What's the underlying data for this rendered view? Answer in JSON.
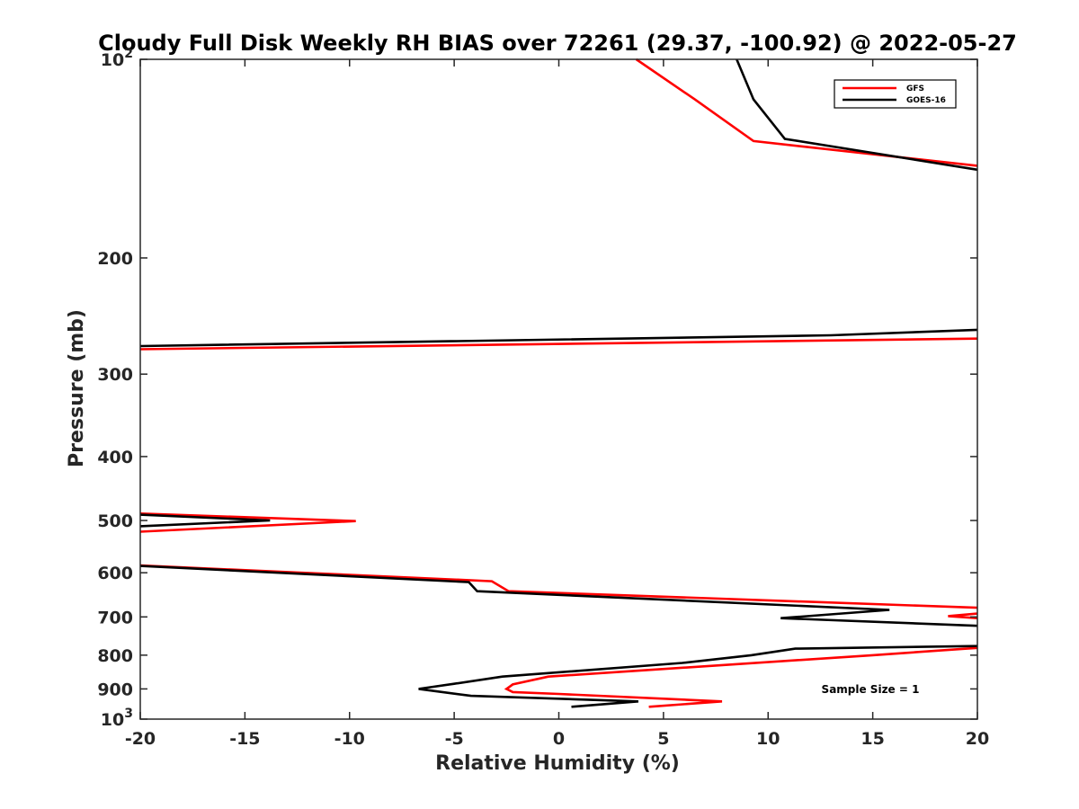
{
  "chart_data": {
    "type": "line",
    "title": "Cloudy Full Disk Weekly RH BIAS over 72261 (29.37, -100.92) @ 2022-05-27",
    "xlabel": "Relative Humidity (%)",
    "ylabel": "Pressure (mb)",
    "xlim": [
      -20,
      20
    ],
    "ylim": [
      100,
      1000
    ],
    "y_scale": "log",
    "y_reversed": true,
    "grid": false,
    "legend_position": "top-right",
    "annotation": "Sample Size = 1",
    "x_ticks": [
      "-20",
      "-15",
      "-10",
      "-5",
      "0",
      "5",
      "10",
      "15",
      "20"
    ],
    "y_ticks": [
      {
        "value": 100,
        "base": "10",
        "exp": "2"
      },
      {
        "value": 200,
        "label": "200"
      },
      {
        "value": 300,
        "label": "300"
      },
      {
        "value": 400,
        "label": "400"
      },
      {
        "value": 500,
        "label": "500"
      },
      {
        "value": 600,
        "label": "600"
      },
      {
        "value": 700,
        "label": "700"
      },
      {
        "value": 800,
        "label": "800"
      },
      {
        "value": 900,
        "label": "900"
      },
      {
        "value": 1000,
        "base": "10",
        "exp": "3"
      }
    ],
    "series": [
      {
        "name": "GFS",
        "color": "#ff0000",
        "segments": [
          [
            [
              3.7,
              100
            ],
            [
              6.5,
              115
            ],
            [
              9.3,
              133
            ],
            [
              20,
              145
            ]
          ],
          [
            [
              20,
              265
            ],
            [
              -20,
              275
            ]
          ],
          [
            [
              -20,
              488
            ],
            [
              -9.7,
              501
            ],
            [
              -20,
              520
            ]
          ],
          [
            [
              -20,
              585
            ],
            [
              -3.2,
              618
            ],
            [
              -2.4,
              640
            ],
            [
              20,
              678
            ]
          ],
          [
            [
              20,
              692
            ],
            [
              18.6,
              698
            ],
            [
              20,
              703
            ]
          ],
          [
            [
              20,
              780
            ],
            [
              19.5,
              782
            ],
            [
              15,
              800
            ],
            [
              -0.5,
              862
            ],
            [
              -2.2,
              886
            ],
            [
              -2.5,
              900
            ],
            [
              -2.2,
              910
            ],
            [
              0,
              916
            ],
            [
              7.8,
              940
            ],
            [
              4.3,
              958
            ]
          ]
        ]
      },
      {
        "name": "GOES-16",
        "color": "#000000",
        "segments": [
          [
            [
              8.5,
              100
            ],
            [
              9.3,
              115
            ],
            [
              10.8,
              132
            ],
            [
              20,
              147
            ]
          ],
          [
            [
              20,
              257
            ],
            [
              13,
              262
            ],
            [
              -20,
              272
            ]
          ],
          [
            [
              -20,
              490
            ],
            [
              -13.8,
              500
            ],
            [
              -20,
              510
            ]
          ],
          [
            [
              -20,
              586
            ],
            [
              -4.3,
              620
            ],
            [
              -3.9,
              640
            ],
            [
              15.8,
              683
            ],
            [
              10.6,
              703
            ],
            [
              20,
              722
            ]
          ],
          [
            [
              20,
              775
            ],
            [
              11.3,
              782
            ],
            [
              9.2,
              800
            ],
            [
              5.9,
              822
            ],
            [
              -2.7,
              862
            ],
            [
              -5,
              884
            ],
            [
              -6.7,
              900
            ],
            [
              -4.2,
              922
            ],
            [
              3.8,
              940
            ],
            [
              0.6,
              958
            ]
          ]
        ]
      }
    ]
  }
}
